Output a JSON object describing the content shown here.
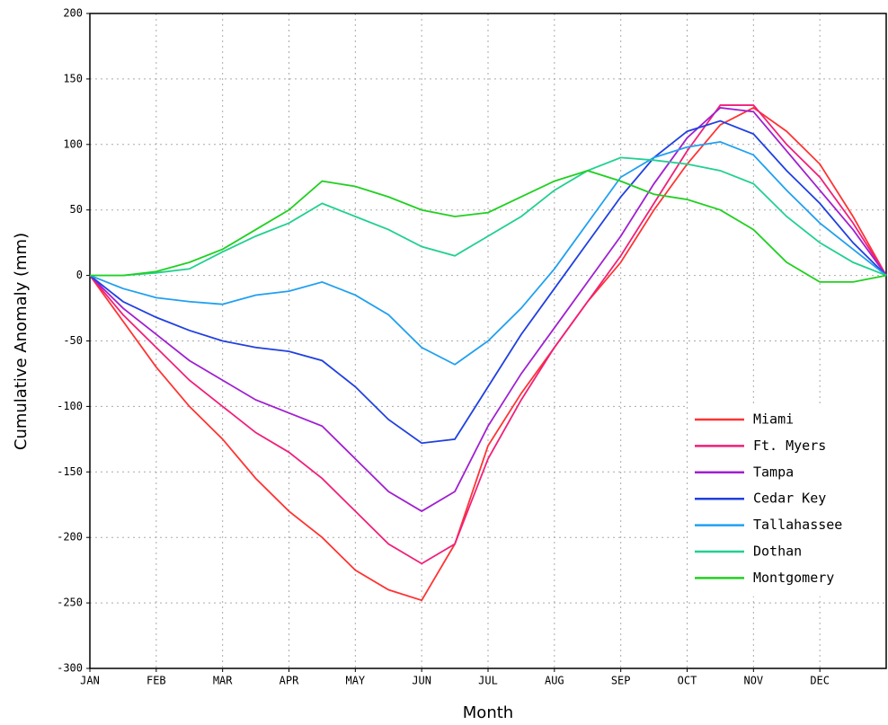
{
  "chart_data": {
    "type": "line",
    "x_label": "Month",
    "y_label": "Cumulative Anomaly (mm)",
    "categories": [
      "JAN",
      null,
      "FEB",
      null,
      "MAR",
      null,
      "APR",
      null,
      "MAY",
      null,
      "JUN",
      null,
      "JUL",
      null,
      "AUG",
      null,
      "SEP",
      null,
      "OCT",
      null,
      "NOV",
      null,
      "DEC",
      null,
      null
    ],
    "ylim": [
      -300,
      200
    ],
    "yticks": [
      -300,
      -250,
      -200,
      -150,
      -100,
      -50,
      0,
      50,
      100,
      150,
      200
    ],
    "grid": true,
    "legend": "lower right",
    "series": [
      {
        "name": "Miami",
        "color": "#ff3333",
        "values": [
          0,
          -35,
          -70,
          -100,
          -125,
          -155,
          -180,
          -200,
          -225,
          -240,
          -248,
          -205,
          -130,
          -90,
          -55,
          -20,
          10,
          50,
          85,
          115,
          128,
          110,
          85,
          45,
          0
        ]
      },
      {
        "name": "Ft. Myers",
        "color": "#f0207a",
        "values": [
          0,
          -30,
          -55,
          -80,
          -100,
          -120,
          -135,
          -155,
          -180,
          -205,
          -220,
          -205,
          -140,
          -95,
          -55,
          -20,
          15,
          55,
          95,
          130,
          130,
          100,
          75,
          40,
          0
        ]
      },
      {
        "name": "Tampa",
        "color": "#a020d0",
        "values": [
          0,
          -25,
          -45,
          -65,
          -80,
          -95,
          -105,
          -115,
          -140,
          -165,
          -180,
          -165,
          -115,
          -75,
          -40,
          -5,
          30,
          70,
          105,
          128,
          125,
          95,
          65,
          35,
          0
        ]
      },
      {
        "name": "Cedar Key",
        "color": "#2040e0",
        "values": [
          0,
          -20,
          -32,
          -42,
          -50,
          -55,
          -58,
          -65,
          -85,
          -110,
          -128,
          -125,
          -85,
          -45,
          -10,
          25,
          60,
          90,
          110,
          118,
          108,
          80,
          55,
          25,
          0
        ]
      },
      {
        "name": "Tallahassee",
        "color": "#20a0f0",
        "values": [
          0,
          -10,
          -17,
          -20,
          -22,
          -15,
          -12,
          -5,
          -15,
          -30,
          -55,
          -68,
          -50,
          -25,
          5,
          40,
          75,
          90,
          98,
          102,
          92,
          65,
          40,
          20,
          0
        ]
      },
      {
        "name": "Dothan",
        "color": "#20d090",
        "values": [
          0,
          0,
          2,
          5,
          18,
          30,
          40,
          55,
          45,
          35,
          22,
          15,
          30,
          45,
          65,
          80,
          90,
          88,
          85,
          80,
          70,
          45,
          25,
          10,
          0
        ]
      },
      {
        "name": "Montgomery",
        "color": "#20d020",
        "values": [
          0,
          0,
          3,
          10,
          20,
          35,
          50,
          72,
          68,
          60,
          50,
          45,
          48,
          60,
          72,
          80,
          72,
          62,
          58,
          50,
          35,
          10,
          -5,
          -5,
          0
        ]
      }
    ]
  }
}
